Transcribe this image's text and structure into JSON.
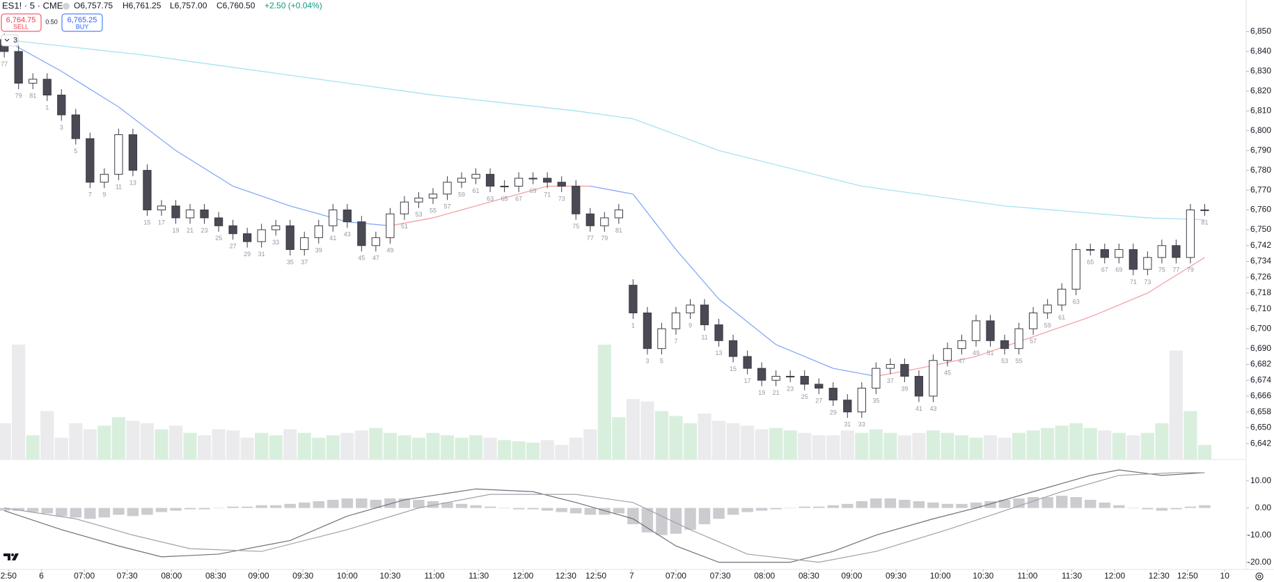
{
  "header": {
    "symbol": "ES1! · 5 · CME",
    "ohlc": [
      "O6,757.75",
      "H6,761.25",
      "L6,757.00",
      "C6,760.50",
      "+2.50 (+0.04%)"
    ],
    "sell_price": "6,764.75",
    "sell_label": "SELL",
    "spread": "0.50",
    "buy_price": "6,765.25",
    "buy_label": "BUY",
    "indicator_count": "3"
  },
  "chart_data": [
    {
      "type": "candlestick",
      "open": [
        6846,
        6840,
        6824,
        6826,
        6818,
        6808,
        6796,
        6774,
        6778,
        6798,
        6780,
        6760,
        6762,
        6756,
        6760,
        6756,
        6752,
        6748,
        6744,
        6750,
        6752,
        6740,
        6746,
        6752,
        6760,
        6754,
        6742,
        6746,
        6758,
        6764,
        6766,
        6768,
        6774,
        6776,
        6778,
        6772,
        6772,
        6776,
        6776,
        6774,
        6772,
        6758,
        6752,
        6756,
        6722,
        6708,
        6690,
        6700,
        6708,
        6712,
        6702,
        6694,
        6686,
        6680,
        6674,
        6676,
        6676,
        6672,
        6670,
        6664,
        6658,
        6670,
        6680,
        6682,
        6676,
        6666,
        6684,
        6690,
        6694,
        6704,
        6694,
        6690,
        6700,
        6708,
        6712,
        6720,
        6740,
        6740,
        6736,
        6740,
        6730,
        6736,
        6742,
        6736,
        6760
      ],
      "high": [
        6849,
        6843,
        6829,
        6829,
        6821,
        6811,
        6799,
        6781,
        6801,
        6801,
        6783,
        6765,
        6765,
        6763,
        6763,
        6759,
        6755,
        6751,
        6753,
        6755,
        6755,
        6749,
        6755,
        6763,
        6763,
        6757,
        6749,
        6761,
        6767,
        6769,
        6771,
        6777,
        6779,
        6781,
        6781,
        6775,
        6779,
        6779,
        6779,
        6777,
        6775,
        6761,
        6759,
        6763,
        6725,
        6711,
        6703,
        6711,
        6715,
        6715,
        6705,
        6697,
        6689,
        6683,
        6679,
        6679,
        6679,
        6675,
        6673,
        6667,
        6673,
        6683,
        6685,
        6685,
        6679,
        6687,
        6693,
        6697,
        6707,
        6707,
        6697,
        6703,
        6711,
        6715,
        6723,
        6743,
        6743,
        6743,
        6743,
        6743,
        6739,
        6745,
        6745,
        6763,
        6763
      ],
      "low": [
        6837,
        6821,
        6821,
        6815,
        6805,
        6793,
        6771,
        6771,
        6775,
        6777,
        6757,
        6757,
        6753,
        6753,
        6753,
        6749,
        6745,
        6741,
        6741,
        6747,
        6737,
        6737,
        6743,
        6749,
        6751,
        6739,
        6739,
        6743,
        6755,
        6761,
        6763,
        6765,
        6771,
        6773,
        6769,
        6769,
        6769,
        6773,
        6771,
        6769,
        6755,
        6749,
        6749,
        6753,
        6705,
        6687,
        6687,
        6697,
        6705,
        6699,
        6691,
        6683,
        6677,
        6671,
        6671,
        6673,
        6669,
        6667,
        6661,
        6655,
        6655,
        6667,
        6677,
        6673,
        6663,
        6663,
        6681,
        6687,
        6691,
        6691,
        6687,
        6687,
        6697,
        6705,
        6709,
        6717,
        6737,
        6733,
        6733,
        6727,
        6727,
        6733,
        6733,
        6733,
        6757
      ],
      "close": [
        6840,
        6824,
        6826,
        6818,
        6808,
        6796,
        6774,
        6778,
        6798,
        6780,
        6760,
        6762,
        6756,
        6760,
        6756,
        6752,
        6748,
        6744,
        6750,
        6752,
        6740,
        6746,
        6752,
        6760,
        6754,
        6742,
        6746,
        6758,
        6764,
        6766,
        6768,
        6774,
        6776,
        6778,
        6772,
        6772,
        6776,
        6776,
        6774,
        6772,
        6758,
        6752,
        6756,
        6760,
        6708,
        6690,
        6700,
        6708,
        6712,
        6702,
        6694,
        6686,
        6680,
        6674,
        6676,
        6676,
        6672,
        6670,
        6664,
        6658,
        6670,
        6680,
        6682,
        6676,
        6666,
        6684,
        6690,
        6694,
        6704,
        6694,
        6690,
        6700,
        6708,
        6712,
        6720,
        6740,
        6740,
        6736,
        6740,
        6730,
        6736,
        6742,
        6736,
        6760,
        6760
      ],
      "bar_labels": [
        77,
        79,
        81,
        1,
        3,
        5,
        7,
        9,
        11,
        13,
        15,
        17,
        19,
        21,
        23,
        25,
        27,
        29,
        31,
        33,
        35,
        37,
        39,
        41,
        43,
        45,
        47,
        49,
        51,
        53,
        55,
        57,
        59,
        61,
        63,
        65,
        67,
        69,
        71,
        73,
        75,
        77,
        79,
        81,
        1,
        3,
        5,
        7,
        9,
        11,
        13,
        15,
        17,
        19,
        21,
        23,
        25,
        27,
        29,
        31,
        33,
        35,
        37,
        39,
        41,
        43,
        45,
        47,
        49,
        51,
        53,
        55,
        57,
        59,
        61,
        63,
        65,
        67,
        69,
        71,
        73,
        75,
        77,
        79,
        81
      ],
      "volume": [
        30,
        95,
        20,
        40,
        18,
        30,
        25,
        28,
        35,
        32,
        30,
        25,
        28,
        22,
        20,
        25,
        24,
        18,
        22,
        20,
        25,
        22,
        18,
        20,
        22,
        24,
        26,
        22,
        20,
        18,
        22,
        20,
        18,
        20,
        18,
        16,
        15,
        14,
        16,
        12,
        18,
        25,
        95,
        35,
        50,
        48,
        40,
        36,
        30,
        38,
        32,
        30,
        28,
        25,
        26,
        24,
        22,
        20,
        20,
        24,
        22,
        25,
        22,
        20,
        22,
        24,
        22,
        20,
        18,
        20,
        18,
        22,
        24,
        26,
        28,
        30,
        26,
        24,
        22,
        20,
        22,
        30,
        90,
        40,
        12
      ],
      "ma_slow": {
        "x": [
          0,
          10,
          20,
          30,
          40,
          44,
          50,
          60,
          70,
          80,
          84
        ],
        "values": [
          6846,
          6838,
          6828,
          6818,
          6810,
          6806,
          6790,
          6772,
          6762,
          6756,
          6755
        ],
        "color": "#a6e1f3"
      },
      "ma_fast": {
        "x": [
          0,
          4,
          8,
          12,
          16,
          20,
          24,
          27,
          30,
          34,
          38,
          41,
          44,
          47,
          50,
          54,
          58,
          61,
          64,
          68,
          72,
          76,
          80,
          84
        ],
        "values": [
          6846,
          6830,
          6812,
          6790,
          6772,
          6762,
          6754,
          6752,
          6756,
          6764,
          6772,
          6772,
          6768,
          6740,
          6715,
          6692,
          6680,
          6676,
          6680,
          6686,
          6696,
          6706,
          6718,
          6736
        ],
        "color_falling": "#86a9f5",
        "color_rising": "#f3a0a8"
      },
      "xlim": [
        -0.3,
        86.9
      ],
      "ylim": [
        6634,
        6866
      ],
      "yticks": [
        {
          "value": 6850,
          "label": "6,850"
        },
        {
          "value": 6840,
          "label": "6,840"
        },
        {
          "value": 6830,
          "label": "6,830"
        },
        {
          "value": 6820,
          "label": "6,820"
        },
        {
          "value": 6810,
          "label": "6,810"
        },
        {
          "value": 6800,
          "label": "6,800"
        },
        {
          "value": 6790,
          "label": "6,790"
        },
        {
          "value": 6780,
          "label": "6,780"
        },
        {
          "value": 6770,
          "label": "6,770"
        },
        {
          "value": 6760,
          "label": "6,760"
        },
        {
          "value": 6750,
          "label": "6,750"
        },
        {
          "value": 6742,
          "label": "6,742"
        },
        {
          "value": 6734,
          "label": "6,734"
        },
        {
          "value": 6726,
          "label": "6,726"
        },
        {
          "value": 6718,
          "label": "6,718"
        },
        {
          "value": 6710,
          "label": "6,710"
        },
        {
          "value": 6700,
          "label": "6,700"
        },
        {
          "value": 6690,
          "label": "6,690"
        },
        {
          "value": 6682,
          "label": "6,682"
        },
        {
          "value": 6674,
          "label": "6,674"
        },
        {
          "value": 6666,
          "label": "6,666"
        },
        {
          "value": 6658,
          "label": "6,658"
        },
        {
          "value": 6650,
          "label": "6,650"
        },
        {
          "value": 6642,
          "label": "6,642"
        }
      ],
      "xticks": [
        {
          "value": 0.3,
          "label": "2:50"
        },
        {
          "value": 2.6,
          "label": "6"
        },
        {
          "value": 5.6,
          "label": "07:00"
        },
        {
          "value": 8.6,
          "label": "07:30"
        },
        {
          "value": 11.7,
          "label": "08:00"
        },
        {
          "value": 14.8,
          "label": "08:30"
        },
        {
          "value": 17.8,
          "label": "09:00"
        },
        {
          "value": 20.9,
          "label": "09:30"
        },
        {
          "value": 24,
          "label": "10:00"
        },
        {
          "value": 27,
          "label": "10:30"
        },
        {
          "value": 30.1,
          "label": "11:00"
        },
        {
          "value": 33.2,
          "label": "11:30"
        },
        {
          "value": 36.3,
          "label": "12:00"
        },
        {
          "value": 39.3,
          "label": "12:30"
        },
        {
          "value": 41.4,
          "label": "12:50"
        },
        {
          "value": 43.9,
          "label": "7"
        },
        {
          "value": 47,
          "label": "07:00"
        },
        {
          "value": 50.1,
          "label": "07:30"
        },
        {
          "value": 53.2,
          "label": "08:00"
        },
        {
          "value": 56.3,
          "label": "08:30"
        },
        {
          "value": 59.3,
          "label": "09:00"
        },
        {
          "value": 62.4,
          "label": "09:30"
        },
        {
          "value": 65.5,
          "label": "10:00"
        },
        {
          "value": 68.5,
          "label": "10:30"
        },
        {
          "value": 71.6,
          "label": "11:00"
        },
        {
          "value": 74.7,
          "label": "11:30"
        },
        {
          "value": 77.7,
          "label": "12:00"
        },
        {
          "value": 80.8,
          "label": "12:30"
        },
        {
          "value": 82.8,
          "label": "12:50"
        },
        {
          "value": 85.4,
          "label": "10"
        }
      ],
      "up_color": "#ffffff",
      "down_color": "#4a4a55",
      "edge_color": "#3b3b45",
      "volume_up_color": "#d9efde",
      "volume_down_color": "#ebebee"
    },
    {
      "type": "macd",
      "histogram": [
        -1,
        -1,
        -1.5,
        -2,
        -3,
        -3.5,
        -4,
        -3.5,
        -2.5,
        -3,
        -2.5,
        -1.5,
        -1,
        -0.5,
        -0.5,
        0,
        0.5,
        0.5,
        1,
        1,
        1.5,
        2,
        2.5,
        3,
        3.5,
        3.5,
        3,
        3.5,
        3.5,
        3,
        2.5,
        2,
        1.5,
        1,
        0.5,
        0,
        -0.5,
        -0.5,
        -1,
        -1.5,
        -2,
        -2.5,
        -2.5,
        -2,
        -6,
        -9,
        -10,
        -9.5,
        -8,
        -6,
        -4,
        -2.5,
        -1.5,
        -1,
        -0.5,
        0,
        0.5,
        0.5,
        1,
        1.5,
        2.5,
        3.5,
        3.5,
        3,
        2.5,
        2,
        1.5,
        1.5,
        2,
        2.5,
        3,
        3.5,
        4,
        4,
        4.5,
        4,
        3,
        2,
        1,
        0,
        -0.5,
        -1,
        -0.5,
        0.5,
        1
      ],
      "macd": {
        "x": [
          0,
          4,
          8,
          11,
          15,
          20,
          24,
          28,
          33,
          37,
          40,
          44,
          47,
          50,
          55,
          58,
          61,
          65,
          68,
          72,
          76,
          78,
          81,
          84
        ],
        "values": [
          -1,
          -8,
          -14,
          -18,
          -17,
          -12,
          -3,
          3,
          7,
          6,
          2,
          -4,
          -14,
          -20,
          -20,
          -16,
          -10,
          -4,
          0,
          6,
          12,
          14,
          12,
          13
        ],
        "color": "#6f6f78"
      },
      "signal": {
        "x": [
          0,
          5,
          9,
          13,
          18,
          24,
          29,
          34,
          40,
          44,
          48,
          52,
          57,
          61,
          66,
          70,
          74,
          78,
          82,
          84
        ],
        "values": [
          0,
          -4,
          -10,
          -15,
          -16,
          -8,
          0,
          5,
          5,
          2,
          -8,
          -17,
          -20,
          -16,
          -8,
          -1,
          6,
          12,
          13,
          13
        ],
        "color": "#a0a0a8"
      },
      "histogram_color": "#cbcbd0",
      "xlim": [
        -0.3,
        86.9
      ],
      "ylim": [
        -22.4,
        17.6
      ],
      "yticks": [
        {
          "value": 10,
          "label": "10.00"
        },
        {
          "value": 0,
          "label": "0.00"
        },
        {
          "value": -10,
          "label": "-10.00"
        },
        {
          "value": -20,
          "label": "-20.00"
        }
      ]
    }
  ]
}
